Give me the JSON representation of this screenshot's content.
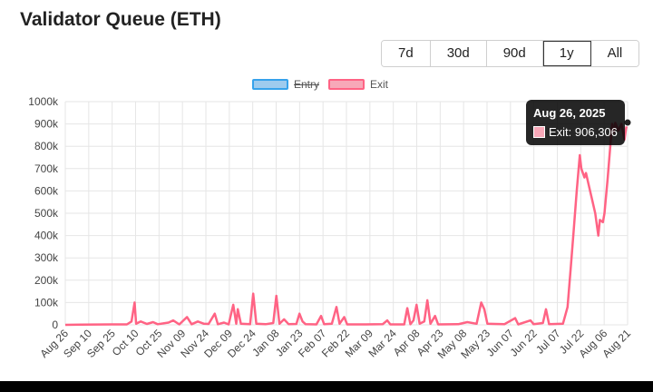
{
  "title": "Validator Queue (ETH)",
  "ranges": [
    {
      "label": "7d",
      "active": false
    },
    {
      "label": "30d",
      "active": false
    },
    {
      "label": "90d",
      "active": false
    },
    {
      "label": "1y",
      "active": true
    },
    {
      "label": "All",
      "active": false
    }
  ],
  "legend": [
    {
      "label": "Entry",
      "color": "#9ecbee",
      "border": "#36a2eb",
      "hidden": true
    },
    {
      "label": "Exit",
      "color": "#f7a8b8",
      "border": "#ff6384",
      "hidden": false
    }
  ],
  "tooltip": {
    "title": "Aug 26, 2025",
    "label": "Exit: 906,306",
    "color": "#f7a8b8"
  },
  "chart_data": {
    "type": "line",
    "ylim": [
      0,
      1000000
    ],
    "yticks": [
      "0",
      "100k",
      "200k",
      "300k",
      "400k",
      "500k",
      "600k",
      "700k",
      "800k",
      "900k",
      "1000k"
    ],
    "x_ticks": [
      "Aug 26",
      "Sep 10",
      "Sep 25",
      "Oct 10",
      "Oct 25",
      "Nov 09",
      "Nov 24",
      "Dec 09",
      "Dec 24",
      "Jan 08",
      "Jan 23",
      "Feb 07",
      "Feb 22",
      "Mar 09",
      "Mar 24",
      "Apr 08",
      "Apr 23",
      "May 08",
      "May 23",
      "Jun 07",
      "Jun 22",
      "Jul 07",
      "Jul 22",
      "Aug 06",
      "Aug 21"
    ],
    "grid": true,
    "series": [
      {
        "name": "Exit",
        "color": "#ff6384",
        "points": [
          [
            "Aug 26",
            0
          ],
          [
            "Sep 05",
            1000
          ],
          [
            "Sep 25",
            2000
          ],
          [
            "Oct 05",
            2000
          ],
          [
            "Oct 08",
            15000
          ],
          [
            "Oct 10",
            100000
          ],
          [
            "Oct 11",
            5000
          ],
          [
            "Oct 14",
            15000
          ],
          [
            "Oct 18",
            4000
          ],
          [
            "Oct 22",
            12000
          ],
          [
            "Oct 25",
            3000
          ],
          [
            "Nov 01",
            10000
          ],
          [
            "Nov 04",
            20000
          ],
          [
            "Nov 08",
            2000
          ],
          [
            "Nov 13",
            35000
          ],
          [
            "Nov 16",
            3000
          ],
          [
            "Nov 20",
            15000
          ],
          [
            "Nov 24",
            5000
          ],
          [
            "Nov 27",
            4000
          ],
          [
            "Dec 01",
            50000
          ],
          [
            "Dec 03",
            3000
          ],
          [
            "Dec 07",
            10000
          ],
          [
            "Dec 10",
            2000
          ],
          [
            "Dec 13",
            90000
          ],
          [
            "Dec 15",
            5000
          ],
          [
            "Dec 16",
            70000
          ],
          [
            "Dec 18",
            5000
          ],
          [
            "Dec 24",
            3000
          ],
          [
            "Dec 26",
            140000
          ],
          [
            "Dec 28",
            5000
          ],
          [
            "Jan 03",
            3000
          ],
          [
            "Jan 08",
            8000
          ],
          [
            "Jan 10",
            130000
          ],
          [
            "Jan 12",
            5000
          ],
          [
            "Jan 15",
            25000
          ],
          [
            "Jan 18",
            3000
          ],
          [
            "Jan 23",
            4000
          ],
          [
            "Jan 25",
            50000
          ],
          [
            "Jan 27",
            15000
          ],
          [
            "Jan 29",
            3000
          ],
          [
            "Feb 05",
            2000
          ],
          [
            "Feb 08",
            40000
          ],
          [
            "Feb 10",
            3000
          ],
          [
            "Feb 15",
            5000
          ],
          [
            "Feb 18",
            80000
          ],
          [
            "Feb 20",
            5000
          ],
          [
            "Feb 23",
            35000
          ],
          [
            "Feb 25",
            2000
          ],
          [
            "Mar 09",
            2000
          ],
          [
            "Mar 20",
            3000
          ],
          [
            "Mar 23",
            20000
          ],
          [
            "Mar 25",
            2000
          ],
          [
            "Apr 03",
            2000
          ],
          [
            "Apr 05",
            75000
          ],
          [
            "Apr 07",
            3000
          ],
          [
            "Apr 09",
            20000
          ],
          [
            "Apr 11",
            90000
          ],
          [
            "Apr 13",
            5000
          ],
          [
            "Apr 16",
            15000
          ],
          [
            "Apr 18",
            110000
          ],
          [
            "Apr 20",
            5000
          ],
          [
            "Apr 23",
            40000
          ],
          [
            "Apr 25",
            2000
          ],
          [
            "May 08",
            3000
          ],
          [
            "May 14",
            12000
          ],
          [
            "May 20",
            5000
          ],
          [
            "May 23",
            100000
          ],
          [
            "May 25",
            70000
          ],
          [
            "May 27",
            5000
          ],
          [
            "Jun 01",
            4000
          ],
          [
            "Jun 07",
            3000
          ],
          [
            "Jun 14",
            30000
          ],
          [
            "Jun 16",
            2000
          ],
          [
            "Jun 24",
            20000
          ],
          [
            "Jun 26",
            3000
          ],
          [
            "Jul 02",
            8000
          ],
          [
            "Jul 04",
            70000
          ],
          [
            "Jul 06",
            3000
          ],
          [
            "Jul 15",
            5000
          ],
          [
            "Jul 18",
            80000
          ],
          [
            "Jul 20",
            250000
          ],
          [
            "Jul 22",
            420000
          ],
          [
            "Jul 24",
            600000
          ],
          [
            "Jul 26",
            760000
          ],
          [
            "Jul 27",
            700000
          ],
          [
            "Jul 29",
            660000
          ],
          [
            "Jul 30",
            680000
          ],
          [
            "Aug 01",
            620000
          ],
          [
            "Aug 03",
            560000
          ],
          [
            "Aug 05",
            500000
          ],
          [
            "Aug 07",
            400000
          ],
          [
            "Aug 08",
            470000
          ],
          [
            "Aug 10",
            460000
          ],
          [
            "Aug 11",
            500000
          ],
          [
            "Aug 13",
            650000
          ],
          [
            "Aug 15",
            820000
          ],
          [
            "Aug 16",
            900000
          ],
          [
            "Aug 17",
            860000
          ],
          [
            "Aug 18",
            905000
          ],
          [
            "Aug 20",
            870000
          ],
          [
            "Aug 22",
            900000
          ],
          [
            "Aug 24",
            830000
          ],
          [
            "Aug 25",
            880000
          ],
          [
            "Aug 26",
            906306
          ]
        ]
      }
    ]
  }
}
